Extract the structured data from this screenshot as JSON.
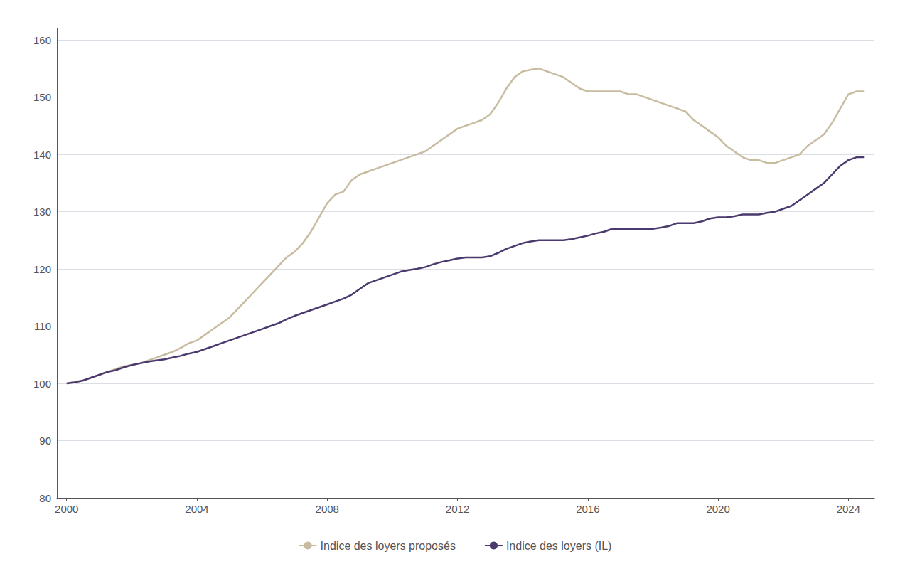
{
  "chart_data": {
    "type": "line",
    "x": [
      2000.0,
      2000.25,
      2000.5,
      2000.75,
      2001.0,
      2001.25,
      2001.5,
      2001.75,
      2002.0,
      2002.25,
      2002.5,
      2002.75,
      2003.0,
      2003.25,
      2003.5,
      2003.75,
      2004.0,
      2004.25,
      2004.5,
      2004.75,
      2005.0,
      2005.25,
      2005.5,
      2005.75,
      2006.0,
      2006.25,
      2006.5,
      2006.75,
      2007.0,
      2007.25,
      2007.5,
      2007.75,
      2008.0,
      2008.25,
      2008.5,
      2008.75,
      2009.0,
      2009.25,
      2009.5,
      2009.75,
      2010.0,
      2010.25,
      2010.5,
      2010.75,
      2011.0,
      2011.25,
      2011.5,
      2011.75,
      2012.0,
      2012.25,
      2012.5,
      2012.75,
      2013.0,
      2013.25,
      2013.5,
      2013.75,
      2014.0,
      2014.25,
      2014.5,
      2014.75,
      2015.0,
      2015.25,
      2015.5,
      2015.75,
      2016.0,
      2016.25,
      2016.5,
      2016.75,
      2017.0,
      2017.25,
      2017.5,
      2017.75,
      2018.0,
      2018.25,
      2018.5,
      2018.75,
      2019.0,
      2019.25,
      2019.5,
      2019.75,
      2020.0,
      2020.25,
      2020.5,
      2020.75,
      2021.0,
      2021.25,
      2021.5,
      2021.75,
      2022.0,
      2022.25,
      2022.5,
      2022.75,
      2023.0,
      2023.25,
      2023.5,
      2023.75,
      2024.0,
      2024.25,
      2024.5
    ],
    "series": [
      {
        "name": "Indice des loyers proposés",
        "color": "#c8bca0",
        "values": [
          100.0,
          100.3,
          100.5,
          101.0,
          101.5,
          102.0,
          102.5,
          103.0,
          103.2,
          103.5,
          104.0,
          104.5,
          105.0,
          105.5,
          106.2,
          107.0,
          107.5,
          108.5,
          109.5,
          110.5,
          111.5,
          113.0,
          114.5,
          116.0,
          117.5,
          119.0,
          120.5,
          122.0,
          123.0,
          124.5,
          126.5,
          129.0,
          131.5,
          133.0,
          133.5,
          135.5,
          136.5,
          137.0,
          137.5,
          138.0,
          138.5,
          139.0,
          139.5,
          140.0,
          140.5,
          141.5,
          142.5,
          143.5,
          144.5,
          145.0,
          145.5,
          146.0,
          147.0,
          149.0,
          151.5,
          153.5,
          154.5,
          154.8,
          155.0,
          154.5,
          154.0,
          153.5,
          152.5,
          151.5,
          151.0,
          151.0,
          151.0,
          151.0,
          151.0,
          150.5,
          150.5,
          150.0,
          149.5,
          149.0,
          148.5,
          148.0,
          147.5,
          146.0,
          145.0,
          144.0,
          143.0,
          141.5,
          140.5,
          139.5,
          139.0,
          139.0,
          138.5,
          138.5,
          139.0,
          139.5,
          140.0,
          141.5,
          142.5,
          143.5,
          145.5,
          148.0,
          150.5,
          151.0,
          151.0
        ]
      },
      {
        "name": "Indice des loyers (IL)",
        "color": "#4b3a6e",
        "values": [
          100.0,
          100.2,
          100.5,
          101.0,
          101.5,
          102.0,
          102.3,
          102.8,
          103.2,
          103.5,
          103.8,
          104.0,
          104.2,
          104.5,
          104.8,
          105.2,
          105.5,
          106.0,
          106.5,
          107.0,
          107.5,
          108.0,
          108.5,
          109.0,
          109.5,
          110.0,
          110.5,
          111.2,
          111.8,
          112.3,
          112.8,
          113.3,
          113.8,
          114.3,
          114.8,
          115.5,
          116.5,
          117.5,
          118.0,
          118.5,
          119.0,
          119.5,
          119.8,
          120.0,
          120.3,
          120.8,
          121.2,
          121.5,
          121.8,
          122.0,
          122.0,
          122.0,
          122.2,
          122.8,
          123.5,
          124.0,
          124.5,
          124.8,
          125.0,
          125.0,
          125.0,
          125.0,
          125.2,
          125.5,
          125.8,
          126.2,
          126.5,
          127.0,
          127.0,
          127.0,
          127.0,
          127.0,
          127.0,
          127.2,
          127.5,
          128.0,
          128.0,
          128.0,
          128.3,
          128.8,
          129.0,
          129.0,
          129.2,
          129.5,
          129.5,
          129.5,
          129.8,
          130.0,
          130.5,
          131.0,
          132.0,
          133.0,
          134.0,
          135.0,
          136.5,
          138.0,
          139.0,
          139.5,
          139.5
        ]
      }
    ],
    "xlim": [
      1999.7,
      2024.8
    ],
    "ylim": [
      80,
      162
    ],
    "xticks": [
      2000,
      2004,
      2008,
      2012,
      2016,
      2020,
      2024
    ],
    "yticks": [
      80,
      90,
      100,
      110,
      120,
      130,
      140,
      150,
      160
    ],
    "grid": true,
    "legend": "bottom"
  }
}
